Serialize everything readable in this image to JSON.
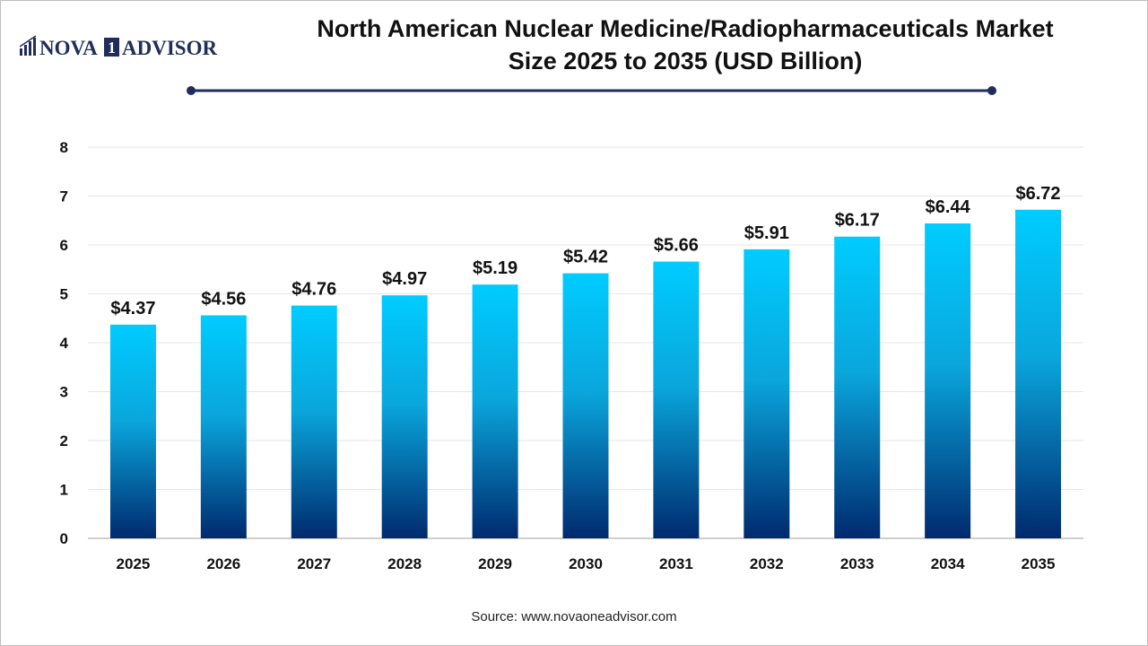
{
  "brand": {
    "logo_text_left": "NOVA",
    "logo_text_mark": "1",
    "logo_text_right": "ADVISOR"
  },
  "header": {
    "title_line1": "North American Nuclear Medicine/Radiopharmaceuticals Market",
    "title_line2": "Size 2025 to 2035 (USD Billion)"
  },
  "footer": {
    "source": "Source: www.novaoneadvisor.com"
  },
  "colors": {
    "bar_top": "#00ccff",
    "bar_bottom": "#002a6e",
    "title_rule": "#1f2d5a",
    "brand_navy": "#1f2d5a"
  },
  "chart_data": {
    "type": "bar",
    "title": "North American Nuclear Medicine/Radiopharmaceuticals Market Size 2025 to 2035 (USD Billion)",
    "categories": [
      "2025",
      "2026",
      "2027",
      "2028",
      "2029",
      "2030",
      "2031",
      "2032",
      "2033",
      "2034",
      "2035"
    ],
    "values": [
      4.37,
      4.56,
      4.76,
      4.97,
      5.19,
      5.42,
      5.66,
      5.91,
      6.17,
      6.44,
      6.72
    ],
    "data_labels": [
      "$4.37",
      "$4.56",
      "$4.76",
      "$4.97",
      "$5.19",
      "$5.42",
      "$5.66",
      "$5.91",
      "$6.17",
      "$6.44",
      "$6.72"
    ],
    "y_ticks": [
      "0",
      "1",
      "2",
      "3",
      "4",
      "5",
      "6",
      "7",
      "8"
    ],
    "ylim": [
      0,
      8
    ],
    "xlabel": "",
    "ylabel": "",
    "grid": true,
    "legend": false
  }
}
